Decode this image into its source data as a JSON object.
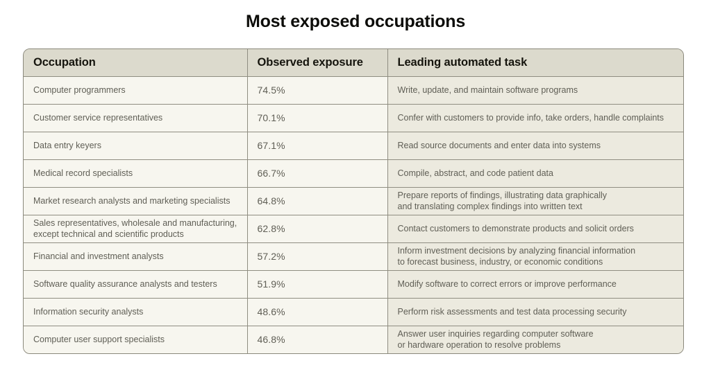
{
  "colors": {
    "page-bg": "#ffffff",
    "header-bg": "#dcdacd",
    "col12-bg": "#f7f6ef",
    "col3-bg": "#eceadf",
    "outer-border": "#8a887b",
    "inner-border": "#8f8d81",
    "header-text": "#15140d",
    "body-text": "#5f5e55",
    "title-text": "#0d0d0a"
  },
  "chart_data": {
    "type": "table",
    "title": "Most exposed occupations",
    "columns": [
      "Occupation",
      "Observed exposure",
      "Leading automated task"
    ],
    "rows": [
      {
        "occupation": "Computer programmers",
        "exposure": "74.5%",
        "task": "Write, update, and maintain software programs"
      },
      {
        "occupation": "Customer service representatives",
        "exposure": "70.1%",
        "task": "Confer with customers to provide info, take orders, handle complaints"
      },
      {
        "occupation": "Data entry keyers",
        "exposure": "67.1%",
        "task": "Read source documents and enter data into systems"
      },
      {
        "occupation": "Medical record specialists",
        "exposure": "66.7%",
        "task": "Compile, abstract, and code patient data"
      },
      {
        "occupation": "Market research analysts and marketing specialists",
        "exposure": "64.8%",
        "task": "Prepare reports of findings, illustrating data graphically\nand translating complex findings into written text"
      },
      {
        "occupation": "Sales representatives, wholesale and manufacturing,\nexcept technical and scientific products",
        "exposure": "62.8%",
        "task": "Contact customers to demonstrate products and solicit orders"
      },
      {
        "occupation": "Financial and investment analysts",
        "exposure": "57.2%",
        "task": "Inform investment decisions by analyzing financial information\nto forecast business, industry, or economic conditions"
      },
      {
        "occupation": "Software quality assurance analysts and testers",
        "exposure": "51.9%",
        "task": "Modify software to correct errors or improve performance"
      },
      {
        "occupation": "Information security analysts",
        "exposure": "48.6%",
        "task": "Perform risk assessments and test data processing security"
      },
      {
        "occupation": "Computer user support specialists",
        "exposure": "46.8%",
        "task": "Answer user inquiries regarding computer software\nor hardware operation to resolve problems"
      }
    ]
  }
}
